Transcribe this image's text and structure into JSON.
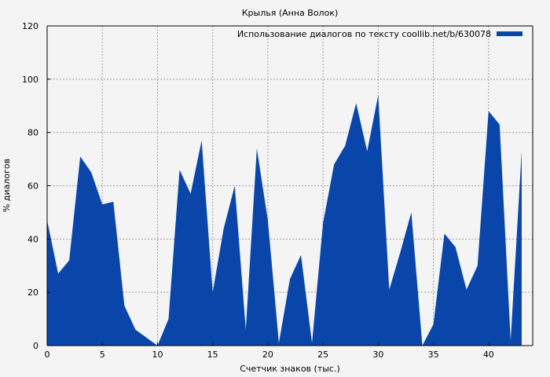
{
  "chart_data": {
    "type": "area",
    "title": "Крылья (Анна Волок)",
    "xlabel": "Счетчик знаков (тыс.)",
    "ylabel": "% диалогов",
    "xlim": [
      0,
      44
    ],
    "ylim": [
      0,
      120
    ],
    "x_ticks": [
      0,
      5,
      10,
      15,
      20,
      25,
      30,
      35,
      40
    ],
    "y_ticks": [
      0,
      20,
      40,
      60,
      80,
      100,
      120
    ],
    "grid": true,
    "legend_position": "top-right",
    "series": [
      {
        "name": "Использование диалогов по тексту coollib.net/b/630078",
        "color": "#0a46aa",
        "x": [
          0,
          1,
          2,
          3,
          4,
          5,
          6,
          7,
          8,
          9,
          10,
          11,
          12,
          13,
          14,
          15,
          16,
          17,
          18,
          19,
          20,
          21,
          22,
          23,
          24,
          25,
          26,
          27,
          28,
          29,
          30,
          31,
          32,
          33,
          34,
          35,
          36,
          37,
          38,
          39,
          40,
          41,
          42,
          43
        ],
        "values": [
          47,
          27,
          32,
          71,
          65,
          53,
          54,
          15,
          6,
          3,
          0,
          10,
          66,
          57,
          77,
          20,
          44,
          60,
          6,
          74,
          47,
          1,
          25,
          34,
          1,
          46,
          68,
          75,
          91,
          73,
          94,
          21,
          35,
          50,
          0,
          8,
          42,
          37,
          21,
          30,
          88,
          83,
          2,
          73
        ]
      }
    ]
  }
}
